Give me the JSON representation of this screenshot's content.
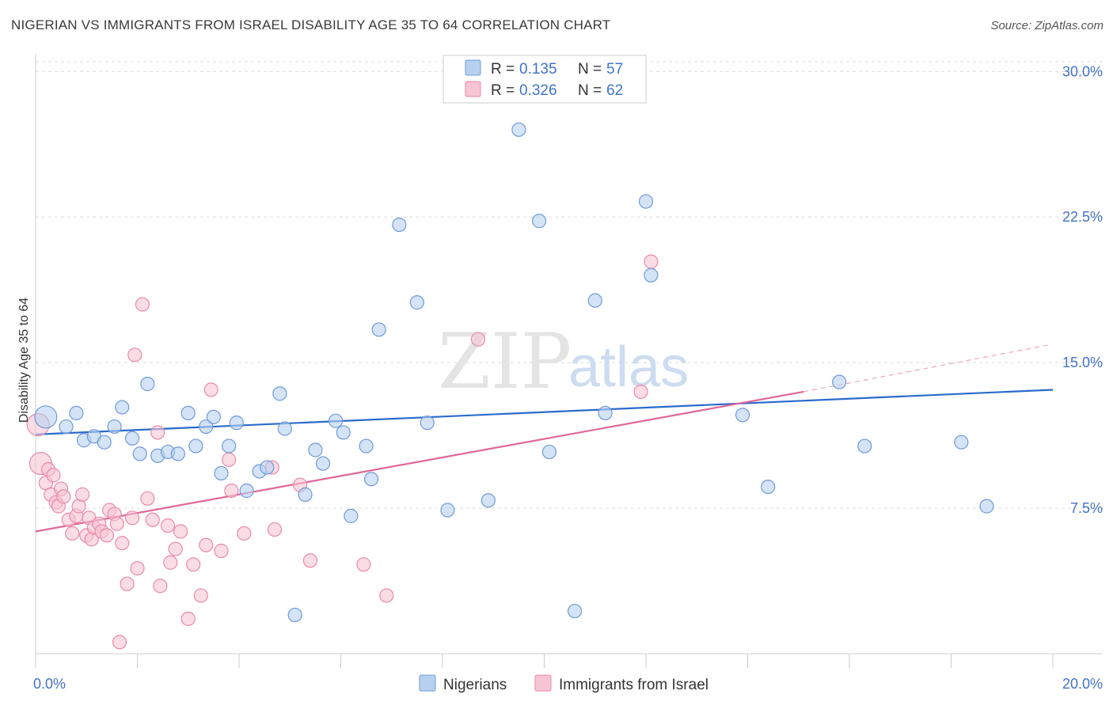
{
  "title": "NIGERIAN VS IMMIGRANTS FROM ISRAEL DISABILITY AGE 35 TO 64 CORRELATION CHART",
  "source": "Source: ZipAtlas.com",
  "watermark": {
    "zip": "ZIP",
    "atlas": "atlas"
  },
  "colors": {
    "blue_fill": "#b7d0ef",
    "blue_stroke": "#6f9bd8",
    "blue_line": "#2a6bcb",
    "pink_fill": "#f7c4d4",
    "pink_stroke": "#e98aa9",
    "pink_line": "#e0679a",
    "grid": "#dddddd",
    "axis_text": "#4472c4"
  },
  "legend": {
    "rows": [
      {
        "r_label": "R = ",
        "r_value": "0.135",
        "n_label": "N = ",
        "n_value": "57"
      },
      {
        "r_label": "R = ",
        "r_value": "0.326",
        "n_label": "N = ",
        "n_value": "62"
      }
    ]
  },
  "bottom_legend": [
    "Nigerians",
    "Immigrants from Israel"
  ],
  "chart_data": {
    "type": "scatter",
    "title": "NIGERIAN VS IMMIGRANTS FROM ISRAEL DISABILITY AGE 35 TO 64 CORRELATION CHART",
    "xlabel": "",
    "ylabel": "Disability Age 35 to 64",
    "xlim": [
      0,
      20
    ],
    "ylim": [
      0,
      30.5
    ],
    "x_tick_labels": [
      "0.0%",
      "20.0%"
    ],
    "y_ticks": [
      7.5,
      15.0,
      22.5,
      30.0
    ],
    "y_tick_labels": [
      "7.5%",
      "15.0%",
      "22.5%",
      "30.0%"
    ],
    "series": [
      {
        "name": "Nigerians",
        "R": 0.135,
        "N": 57,
        "trend": {
          "x0": 0,
          "y0": 11.3,
          "x1": 20,
          "y1": 13.6,
          "dashed_from": null
        },
        "points": [
          [
            0.2,
            12.2,
            "lg"
          ],
          [
            0.6,
            11.7
          ],
          [
            0.8,
            12.4
          ],
          [
            0.95,
            11.0
          ],
          [
            1.15,
            11.2
          ],
          [
            1.35,
            10.9
          ],
          [
            1.55,
            11.7
          ],
          [
            1.7,
            12.7
          ],
          [
            1.9,
            11.1
          ],
          [
            2.05,
            10.3
          ],
          [
            2.2,
            13.9
          ],
          [
            2.4,
            10.2
          ],
          [
            2.6,
            10.4
          ],
          [
            2.8,
            10.3
          ],
          [
            3.0,
            12.4
          ],
          [
            3.15,
            10.7
          ],
          [
            3.35,
            11.7
          ],
          [
            3.5,
            12.2
          ],
          [
            3.65,
            9.3
          ],
          [
            3.8,
            10.7
          ],
          [
            3.95,
            11.9
          ],
          [
            4.15,
            8.4
          ],
          [
            4.4,
            9.4
          ],
          [
            4.55,
            9.6
          ],
          [
            4.8,
            13.4
          ],
          [
            4.9,
            11.6
          ],
          [
            5.1,
            2.0
          ],
          [
            5.3,
            8.2
          ],
          [
            5.5,
            10.5
          ],
          [
            5.65,
            9.8
          ],
          [
            5.9,
            12.0
          ],
          [
            6.05,
            11.4
          ],
          [
            6.2,
            7.1
          ],
          [
            6.5,
            10.7
          ],
          [
            6.6,
            9.0
          ],
          [
            6.75,
            16.7
          ],
          [
            7.15,
            22.1
          ],
          [
            7.5,
            18.1
          ],
          [
            7.7,
            11.9
          ],
          [
            8.1,
            7.4
          ],
          [
            8.9,
            7.9
          ],
          [
            9.5,
            27.0
          ],
          [
            9.9,
            22.3
          ],
          [
            10.1,
            10.4
          ],
          [
            10.6,
            2.2
          ],
          [
            11.0,
            18.2
          ],
          [
            11.2,
            12.4
          ],
          [
            12.0,
            23.3
          ],
          [
            12.1,
            19.5
          ],
          [
            13.9,
            12.3
          ],
          [
            14.4,
            8.6
          ],
          [
            15.8,
            14.0
          ],
          [
            16.3,
            10.7
          ],
          [
            18.2,
            10.9
          ],
          [
            18.7,
            7.6
          ]
        ]
      },
      {
        "name": "Immigrants from Israel",
        "R": 0.326,
        "N": 62,
        "trend": {
          "x0": 0,
          "y0": 6.3,
          "x1": 15.1,
          "y1": 13.5,
          "dashed_from": 15.1,
          "dashed_to_x": 19.9,
          "dashed_to_y": 15.9
        },
        "points": [
          [
            0.05,
            11.8,
            "lg"
          ],
          [
            0.1,
            9.8,
            "lg"
          ],
          [
            0.2,
            8.8
          ],
          [
            0.25,
            9.5
          ],
          [
            0.3,
            8.2
          ],
          [
            0.35,
            9.2
          ],
          [
            0.4,
            7.8
          ],
          [
            0.45,
            7.6
          ],
          [
            0.5,
            8.5
          ],
          [
            0.55,
            8.1
          ],
          [
            0.65,
            6.9
          ],
          [
            0.72,
            6.2
          ],
          [
            0.8,
            7.1
          ],
          [
            0.85,
            7.6
          ],
          [
            0.92,
            8.2
          ],
          [
            1.0,
            6.1
          ],
          [
            1.05,
            7.0
          ],
          [
            1.1,
            5.9
          ],
          [
            1.15,
            6.5
          ],
          [
            1.25,
            6.7
          ],
          [
            1.3,
            6.3
          ],
          [
            1.4,
            6.1
          ],
          [
            1.45,
            7.4
          ],
          [
            1.55,
            7.2
          ],
          [
            1.6,
            6.7
          ],
          [
            1.65,
            0.6
          ],
          [
            1.7,
            5.7
          ],
          [
            1.8,
            3.6
          ],
          [
            1.9,
            7.0
          ],
          [
            1.95,
            15.4
          ],
          [
            2.0,
            4.4
          ],
          [
            2.1,
            18.0
          ],
          [
            2.2,
            8.0
          ],
          [
            2.3,
            6.9
          ],
          [
            2.4,
            11.4
          ],
          [
            2.45,
            3.5
          ],
          [
            2.6,
            6.6
          ],
          [
            2.65,
            4.7
          ],
          [
            2.75,
            5.4
          ],
          [
            2.85,
            6.3
          ],
          [
            3.0,
            1.8
          ],
          [
            3.1,
            4.6
          ],
          [
            3.25,
            3.0
          ],
          [
            3.35,
            5.6
          ],
          [
            3.45,
            13.6
          ],
          [
            3.65,
            5.3
          ],
          [
            3.85,
            8.4
          ],
          [
            4.1,
            6.2
          ],
          [
            4.65,
            9.6
          ],
          [
            4.7,
            6.4
          ],
          [
            5.2,
            8.7
          ],
          [
            5.4,
            4.8
          ],
          [
            6.45,
            4.6
          ],
          [
            6.9,
            3.0
          ],
          [
            8.7,
            16.2
          ],
          [
            11.9,
            13.5
          ],
          [
            12.1,
            20.2
          ],
          [
            3.8,
            10.0
          ]
        ]
      }
    ]
  }
}
